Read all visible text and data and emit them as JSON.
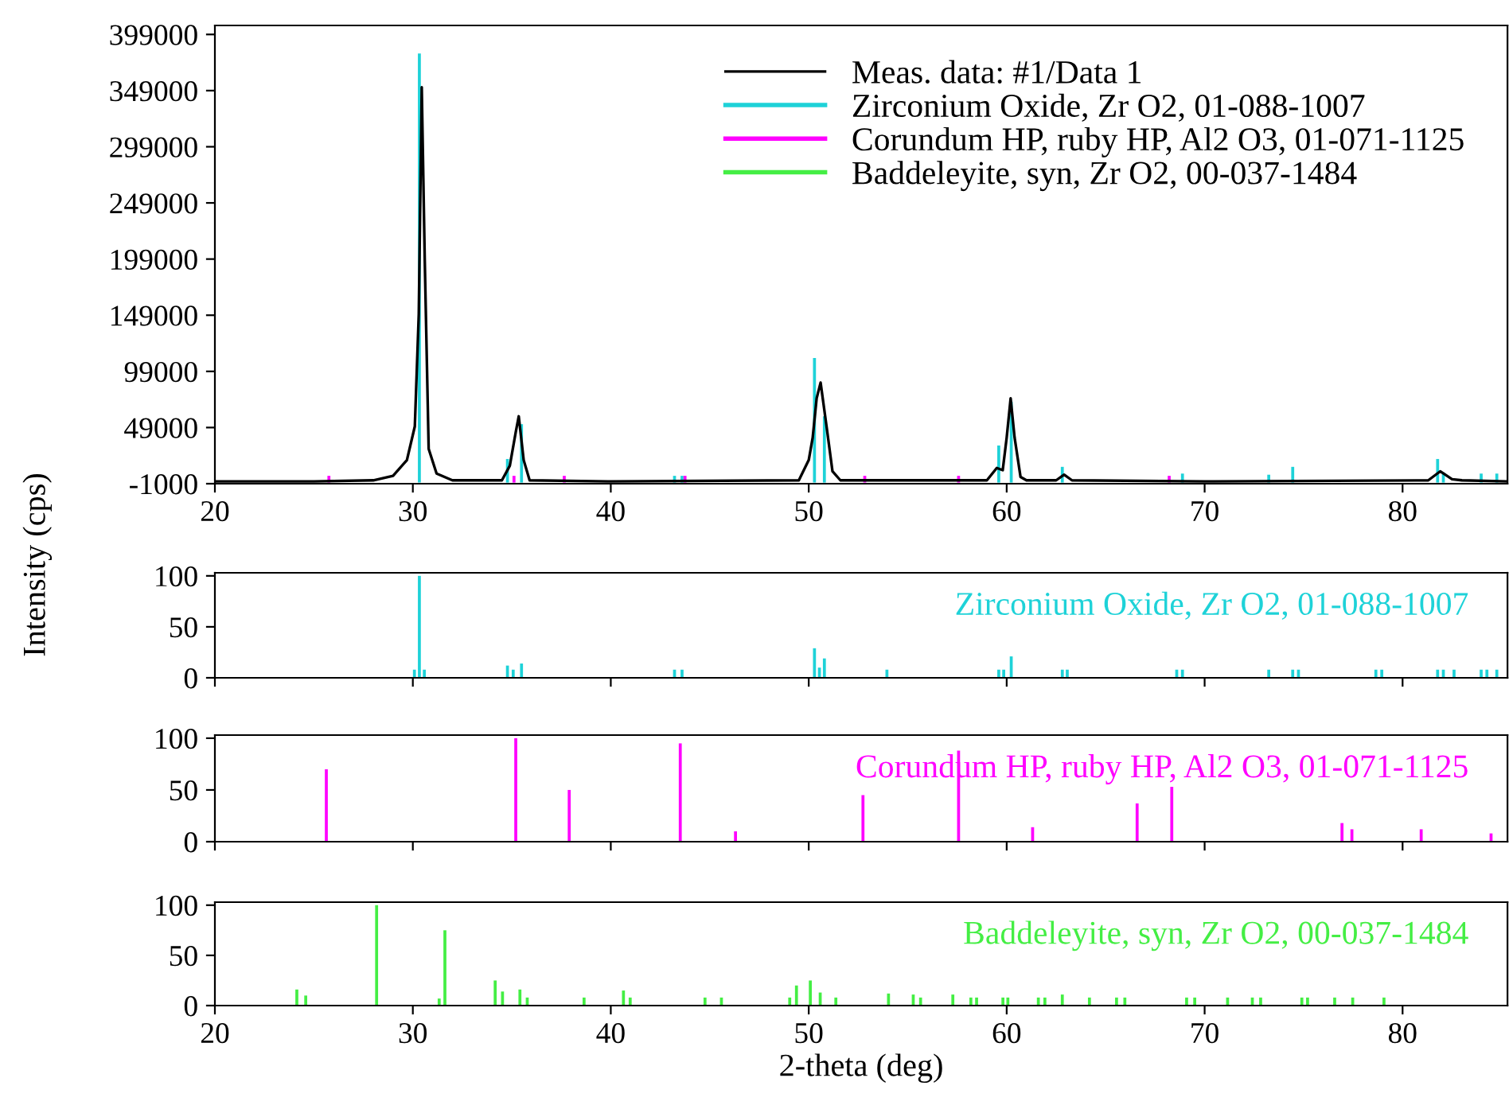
{
  "chart_data": [
    {
      "type": "line",
      "ylabel": "Intensity (cps)",
      "xlim": [
        20,
        85.3
      ],
      "xticks": [
        20,
        30,
        40,
        50,
        60,
        70,
        80
      ],
      "ylim": [
        -1000,
        407000
      ],
      "yticks": [
        -1000,
        49000,
        99000,
        149000,
        199000,
        249000,
        299000,
        349000,
        399000
      ],
      "legend": "top right",
      "grid": false,
      "series": [
        {
          "name": "Meas. data: #1/Data 1",
          "type": "line",
          "color": "#000000",
          "x": [
            20,
            25,
            28,
            29,
            29.7,
            30.1,
            30.3,
            30.45,
            30.6,
            30.8,
            31.2,
            32,
            34.5,
            34.9,
            35.2,
            35.35,
            35.6,
            35.9,
            40,
            49.5,
            50.0,
            50.2,
            50.4,
            50.6,
            50.9,
            51.2,
            51.6,
            59.0,
            59.5,
            59.8,
            60.0,
            60.2,
            60.4,
            60.7,
            61.0,
            62.5,
            62.9,
            63.3,
            70,
            81.3,
            81.9,
            82.5,
            83,
            85.3
          ],
          "values": [
            1000,
            1000,
            2000,
            6000,
            20000,
            50000,
            150000,
            352000,
            200000,
            30000,
            8000,
            2000,
            2000,
            15000,
            45000,
            59000,
            20000,
            2000,
            1000,
            2000,
            20000,
            40000,
            75000,
            89000,
            50000,
            10000,
            2000,
            2000,
            13000,
            11000,
            40000,
            75000,
            40000,
            5000,
            2000,
            2000,
            7000,
            2000,
            1000,
            2000,
            10000,
            3000,
            2000,
            1000
          ]
        },
        {
          "name": "Zirconium Oxide, Zr O2, 01-088-1007",
          "type": "bar",
          "color": "#1ed2d8",
          "x": [
            30.33,
            34.78,
            35.49,
            43.22,
            43.6,
            50.29,
            50.79,
            59.6,
            60.23,
            62.81,
            68.88,
            73.24,
            74.45,
            81.77,
            82.06,
            83.97,
            84.76
          ],
          "values": [
            382000,
            21000,
            52000,
            6000,
            6000,
            111000,
            59000,
            33000,
            72000,
            14000,
            8000,
            7000,
            14000,
            21000,
            9000,
            8000,
            8000
          ]
        },
        {
          "name": "Corundum HP, ruby HP, Al2 O3, 01-071-1125",
          "type": "bar",
          "color": "#ff00ff",
          "x": [
            25.76,
            35.11,
            37.65,
            43.75,
            52.83,
            57.57,
            68.21
          ],
          "values": [
            6000,
            6000,
            6000,
            6000,
            6000,
            6000,
            6000
          ]
        },
        {
          "name": "Baddeleyite, syn, Zr O2, 00-037-1484",
          "type": "bar",
          "color": "#44ee44"
        }
      ]
    },
    {
      "type": "bar",
      "xlim": [
        20,
        85.3
      ],
      "xticks": [
        20,
        30,
        40,
        50,
        60,
        70,
        80
      ],
      "ylim": [
        0,
        103
      ],
      "yticks": [
        0,
        50,
        100
      ],
      "tick_labels": "y",
      "series": [
        {
          "name": "Zirconium Oxide, Zr O2, 01-088-1007",
          "color": "#1ed2d8",
          "x": [
            30.08,
            30.33,
            30.58,
            34.78,
            35.07,
            35.49,
            43.22,
            43.6,
            50.29,
            50.54,
            50.79,
            53.95,
            59.6,
            59.85,
            60.23,
            62.81,
            63.06,
            68.59,
            68.88,
            73.24,
            74.45,
            74.74,
            78.65,
            78.95,
            81.77,
            82.06,
            82.6,
            83.97,
            84.26,
            84.76
          ],
          "values": [
            8,
            100,
            8,
            12,
            8,
            14,
            8,
            8,
            29,
            10,
            19,
            8,
            8,
            8,
            21,
            8,
            8,
            8,
            8,
            8,
            8,
            8,
            8,
            8,
            8,
            8,
            8,
            8,
            8,
            8
          ]
        }
      ]
    },
    {
      "type": "bar",
      "xlim": [
        20,
        85.3
      ],
      "xticks": [
        20,
        30,
        40,
        50,
        60,
        70,
        80
      ],
      "ylim": [
        0,
        103
      ],
      "yticks": [
        0,
        50,
        100
      ],
      "tick_labels": "y",
      "series": [
        {
          "name": "Corundum HP, ruby HP, Al2 O3, 01-071-1125",
          "color": "#ff00ff",
          "x": [
            25.63,
            35.2,
            37.9,
            43.51,
            46.3,
            52.74,
            57.57,
            61.31,
            66.59,
            68.34,
            76.94,
            77.44,
            80.94,
            84.47
          ],
          "values": [
            70,
            100,
            50,
            95,
            10,
            45,
            88,
            14,
            37,
            53,
            18,
            12,
            12,
            8
          ]
        }
      ]
    },
    {
      "type": "bar",
      "xlabel": "2-theta (deg)",
      "xlim": [
        20,
        85.3
      ],
      "xticks": [
        20,
        30,
        40,
        50,
        60,
        70,
        80
      ],
      "ylim": [
        0,
        103
      ],
      "yticks": [
        0,
        50,
        100
      ],
      "series": [
        {
          "name": "Baddeleyite, syn, Zr O2, 00-037-1484",
          "color": "#44ee44",
          "x": [
            24.14,
            24.59,
            28.17,
            31.33,
            31.62,
            34.16,
            34.53,
            35.41,
            35.78,
            38.65,
            40.64,
            40.98,
            44.76,
            45.59,
            49.04,
            49.38,
            50.08,
            50.58,
            51.37,
            54.03,
            55.28,
            55.65,
            57.28,
            58.19,
            58.48,
            59.81,
            60.06,
            61.6,
            61.93,
            62.81,
            64.18,
            65.55,
            65.97,
            69.09,
            69.5,
            71.16,
            72.41,
            72.83,
            74.91,
            75.2,
            76.57,
            77.48,
            79.06
          ],
          "values": [
            16,
            10,
            100,
            7,
            75,
            25,
            14,
            16,
            8,
            8,
            15,
            8,
            8,
            8,
            8,
            20,
            25,
            13,
            8,
            12,
            11,
            8,
            11,
            8,
            8,
            8,
            8,
            8,
            8,
            11,
            8,
            8,
            8,
            8,
            8,
            8,
            8,
            8,
            8,
            8,
            8,
            8,
            8
          ]
        }
      ]
    }
  ]
}
